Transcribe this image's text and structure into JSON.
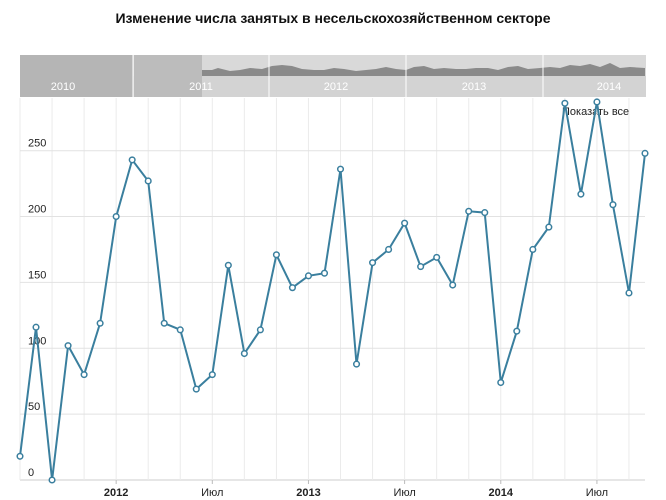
{
  "chart_data": {
    "type": "line",
    "title": "Изменение числа занятых в несельскохозяйственном секторе",
    "y_ticks": [
      0,
      50,
      100,
      150,
      200,
      250
    ],
    "ylim": [
      0,
      290
    ],
    "x_labels": [
      "2012",
      "Июл",
      "2013",
      "Июл",
      "2014",
      "Июл"
    ],
    "x_label_month_index": [
      0,
      6,
      12,
      18,
      24,
      30
    ],
    "x_label_bold": [
      true,
      false,
      true,
      false,
      true,
      false
    ],
    "grid": true,
    "line_color": "#3a7f9e",
    "series": [
      {
        "x_month_index": [
          -6,
          -5,
          -4,
          -3,
          -2,
          -1,
          0,
          1,
          2,
          3,
          4,
          5,
          6,
          7,
          8,
          9,
          10,
          11,
          12,
          13,
          14,
          15,
          16,
          17,
          18,
          19,
          20,
          21,
          22,
          23,
          24,
          25,
          26,
          27,
          28,
          29,
          30,
          31,
          32,
          33
        ],
        "values": [
          18,
          116,
          0,
          102,
          80,
          119,
          200,
          243,
          227,
          119,
          114,
          69,
          80,
          163,
          96,
          114,
          171,
          146,
          155,
          157,
          236,
          88,
          165,
          175,
          195,
          162,
          169,
          148,
          204,
          203,
          74,
          113,
          175,
          192,
          286,
          217,
          287,
          209,
          142,
          248
        ]
      }
    ]
  },
  "navigator": {
    "years": [
      "2010",
      "2011",
      "2012",
      "2013",
      "2014"
    ]
  },
  "controls": {
    "show_all_label": "Показать все"
  }
}
